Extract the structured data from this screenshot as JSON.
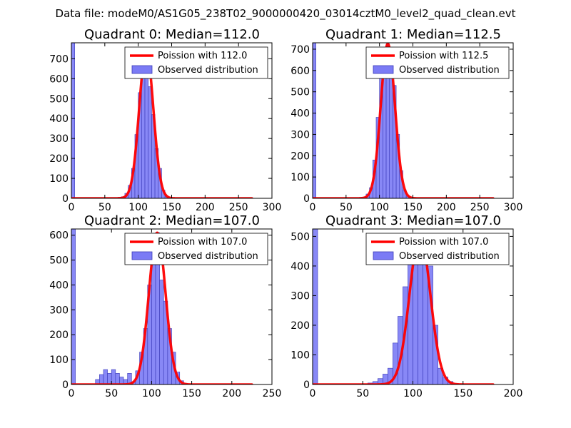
{
  "figure": {
    "suptitle": "Data file: modeM0/AS1G05_238T02_9000000420_03014cztM0_level2_quad_clean.evt"
  },
  "colors": {
    "bar_fill": "#7b7bf5",
    "bar_edge": "#3a3ab8",
    "poisson_line": "#ff0000",
    "axis": "#000000",
    "background": "#ffffff"
  },
  "chart_data": [
    {
      "type": "bar",
      "title": "Quadrant 0: Median=112.0",
      "xlim": [
        0,
        300
      ],
      "ylim": [
        0,
        780
      ],
      "xticks": [
        0,
        50,
        100,
        150,
        200,
        250,
        300
      ],
      "yticks": [
        0,
        100,
        200,
        300,
        400,
        500,
        600,
        700
      ],
      "legend": {
        "location": "top-right",
        "entries": [
          "Poission with 112.0",
          "Observed distribution"
        ]
      },
      "poisson_mean": 112.0,
      "poisson_peak": 745,
      "bin_width": 5,
      "bins": [
        {
          "x": 0,
          "y": 780
        },
        {
          "x": 70,
          "y": 5
        },
        {
          "x": 75,
          "y": 8
        },
        {
          "x": 80,
          "y": 25
        },
        {
          "x": 85,
          "y": 65
        },
        {
          "x": 90,
          "y": 150
        },
        {
          "x": 95,
          "y": 320
        },
        {
          "x": 100,
          "y": 530
        },
        {
          "x": 105,
          "y": 690
        },
        {
          "x": 110,
          "y": 745
        },
        {
          "x": 115,
          "y": 560
        },
        {
          "x": 120,
          "y": 420
        },
        {
          "x": 125,
          "y": 250
        },
        {
          "x": 130,
          "y": 150
        },
        {
          "x": 135,
          "y": 40
        },
        {
          "x": 140,
          "y": 12
        },
        {
          "x": 145,
          "y": 4
        }
      ]
    },
    {
      "type": "bar",
      "title": "Quadrant 1: Median=112.5",
      "xlim": [
        0,
        300
      ],
      "ylim": [
        0,
        730
      ],
      "xticks": [
        0,
        50,
        100,
        150,
        200,
        250,
        300
      ],
      "yticks": [
        0,
        100,
        200,
        300,
        400,
        500,
        600,
        700
      ],
      "legend": {
        "location": "top-right",
        "entries": [
          "Poission with 112.5",
          "Observed distribution"
        ]
      },
      "poisson_mean": 112.5,
      "poisson_peak": 725,
      "bin_width": 5,
      "bins": [
        {
          "x": 0,
          "y": 730
        },
        {
          "x": 70,
          "y": 4
        },
        {
          "x": 75,
          "y": 6
        },
        {
          "x": 80,
          "y": 20
        },
        {
          "x": 85,
          "y": 50
        },
        {
          "x": 90,
          "y": 180
        },
        {
          "x": 95,
          "y": 380
        },
        {
          "x": 100,
          "y": 570
        },
        {
          "x": 105,
          "y": 700
        },
        {
          "x": 110,
          "y": 725
        },
        {
          "x": 115,
          "y": 690
        },
        {
          "x": 120,
          "y": 530
        },
        {
          "x": 125,
          "y": 300
        },
        {
          "x": 130,
          "y": 130
        },
        {
          "x": 135,
          "y": 40
        },
        {
          "x": 140,
          "y": 10
        },
        {
          "x": 145,
          "y": 3
        }
      ]
    },
    {
      "type": "bar",
      "title": "Quadrant 2: Median=107.0",
      "xlim": [
        0,
        250
      ],
      "ylim": [
        0,
        625
      ],
      "xticks": [
        0,
        50,
        100,
        150,
        200,
        250
      ],
      "yticks": [
        0,
        100,
        200,
        300,
        400,
        500,
        600
      ],
      "legend": {
        "location": "top-right",
        "entries": [
          "Poission with 107.0",
          "Observed distribution"
        ]
      },
      "poisson_mean": 107.0,
      "poisson_peak": 610,
      "bin_width": 5,
      "bins": [
        {
          "x": 0,
          "y": 625
        },
        {
          "x": 30,
          "y": 20
        },
        {
          "x": 35,
          "y": 40
        },
        {
          "x": 40,
          "y": 60
        },
        {
          "x": 45,
          "y": 45
        },
        {
          "x": 50,
          "y": 60
        },
        {
          "x": 55,
          "y": 45
        },
        {
          "x": 60,
          "y": 30
        },
        {
          "x": 65,
          "y": 20
        },
        {
          "x": 70,
          "y": 45
        },
        {
          "x": 75,
          "y": 10
        },
        {
          "x": 80,
          "y": 55
        },
        {
          "x": 85,
          "y": 130
        },
        {
          "x": 90,
          "y": 225
        },
        {
          "x": 95,
          "y": 400
        },
        {
          "x": 100,
          "y": 540
        },
        {
          "x": 105,
          "y": 610
        },
        {
          "x": 110,
          "y": 420
        },
        {
          "x": 115,
          "y": 335
        },
        {
          "x": 120,
          "y": 225
        },
        {
          "x": 125,
          "y": 130
        },
        {
          "x": 130,
          "y": 50
        },
        {
          "x": 135,
          "y": 15
        },
        {
          "x": 140,
          "y": 5
        }
      ]
    },
    {
      "type": "bar",
      "title": "Quadrant 3: Median=107.0",
      "xlim": [
        0,
        200
      ],
      "ylim": [
        0,
        525
      ],
      "xticks": [
        0,
        50,
        100,
        150,
        200
      ],
      "yticks": [
        0,
        100,
        200,
        300,
        400,
        500
      ],
      "legend": {
        "location": "top-right",
        "entries": [
          "Poission with 107.0",
          "Observed distribution"
        ]
      },
      "poisson_mean": 107.0,
      "poisson_peak": 505,
      "bin_width": 5,
      "bins": [
        {
          "x": 0,
          "y": 525
        },
        {
          "x": 55,
          "y": 5
        },
        {
          "x": 60,
          "y": 10
        },
        {
          "x": 65,
          "y": 20
        },
        {
          "x": 70,
          "y": 35
        },
        {
          "x": 75,
          "y": 55
        },
        {
          "x": 80,
          "y": 140
        },
        {
          "x": 85,
          "y": 230
        },
        {
          "x": 90,
          "y": 330
        },
        {
          "x": 95,
          "y": 460
        },
        {
          "x": 100,
          "y": 470
        },
        {
          "x": 105,
          "y": 505
        },
        {
          "x": 110,
          "y": 480
        },
        {
          "x": 115,
          "y": 400
        },
        {
          "x": 120,
          "y": 200
        },
        {
          "x": 125,
          "y": 55
        },
        {
          "x": 130,
          "y": 25
        },
        {
          "x": 135,
          "y": 10
        },
        {
          "x": 140,
          "y": 3
        }
      ]
    }
  ]
}
